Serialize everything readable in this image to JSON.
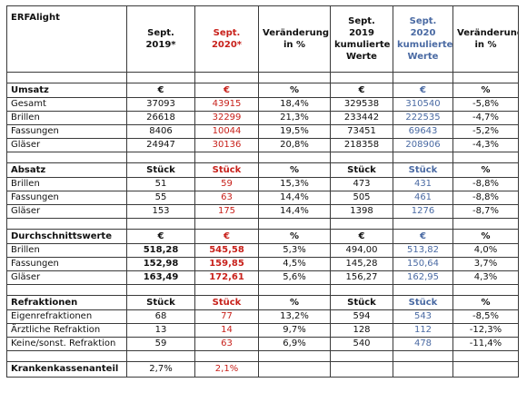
{
  "title": "ERFAlight",
  "headers": {
    "sept2019": "Sept. 2019*",
    "sept2020": "Sept. 2020*",
    "change": "Veränderung in %",
    "cum2019": "Sept. 2019 kumulierte Werte",
    "cum2020": "Sept. 2020 kumulierte Werte",
    "cum_change": "Veränderung in %"
  },
  "colors": {
    "red": "#c8211b",
    "blue": "#4a6aa3"
  },
  "sections": [
    {
      "label": "Umsatz",
      "units": [
        "€",
        "€",
        "%",
        "€",
        "€",
        "%"
      ],
      "rows": [
        {
          "label": "Gesamt",
          "values": [
            "37093",
            "43915",
            "18,4%",
            "329538",
            "310540",
            "-5,8%"
          ]
        },
        {
          "label": "Brillen",
          "values": [
            "26618",
            "32299",
            "21,3%",
            "233442",
            "222535",
            "-4,7%"
          ]
        },
        {
          "label": "Fassungen",
          "values": [
            "8406",
            "10044",
            "19,5%",
            "73451",
            "69643",
            "-5,2%"
          ]
        },
        {
          "label": "Gläser",
          "values": [
            "24947",
            "30136",
            "20,8%",
            "218358",
            "208906",
            "-4,3%"
          ]
        }
      ]
    },
    {
      "label": "Absatz",
      "units": [
        "Stück",
        "Stück",
        "%",
        "Stück",
        "Stück",
        "%"
      ],
      "rows": [
        {
          "label": "Brillen",
          "values": [
            "51",
            "59",
            "15,3%",
            "473",
            "431",
            "-8,8%"
          ]
        },
        {
          "label": "Fassungen",
          "values": [
            "55",
            "63",
            "14,4%",
            "505",
            "461",
            "-8,8%"
          ]
        },
        {
          "label": "Gläser",
          "values": [
            "153",
            "175",
            "14,4%",
            "1398",
            "1276",
            "-8,7%"
          ]
        }
      ]
    },
    {
      "label": "Durchschnittswerte",
      "units": [
        "€",
        "€",
        "%",
        "€",
        "€",
        "%"
      ],
      "rows": [
        {
          "label": "Brillen",
          "values": [
            "518,28",
            "545,58",
            "5,3%",
            "494,00",
            "513,82",
            "4,0%"
          ]
        },
        {
          "label": "Fassungen",
          "values": [
            "152,98",
            "159,85",
            "4,5%",
            "145,28",
            "150,64",
            "3,7%"
          ]
        },
        {
          "label": "Gläser",
          "values": [
            "163,49",
            "172,61",
            "5,6%",
            "156,27",
            "162,95",
            "4,3%"
          ]
        }
      ]
    },
    {
      "label": "Refraktionen",
      "units": [
        "Stück",
        "Stück",
        "%",
        "Stück",
        "Stück",
        "%"
      ],
      "rows": [
        {
          "label": "Eigenrefraktionen",
          "values": [
            "68",
            "77",
            "13,2%",
            "594",
            "543",
            "-8,5%"
          ]
        },
        {
          "label": "Ärztliche Refraktion",
          "values": [
            "13",
            "14",
            "9,7%",
            "128",
            "112",
            "-12,3%"
          ]
        },
        {
          "label": "Keine/sonst. Refraktion",
          "values": [
            "59",
            "63",
            "6,9%",
            "540",
            "478",
            "-11,4%"
          ]
        }
      ]
    }
  ],
  "krankenkassen": {
    "label": "Krankenkassenanteil",
    "values": [
      "2,7%",
      "2,1%"
    ]
  }
}
